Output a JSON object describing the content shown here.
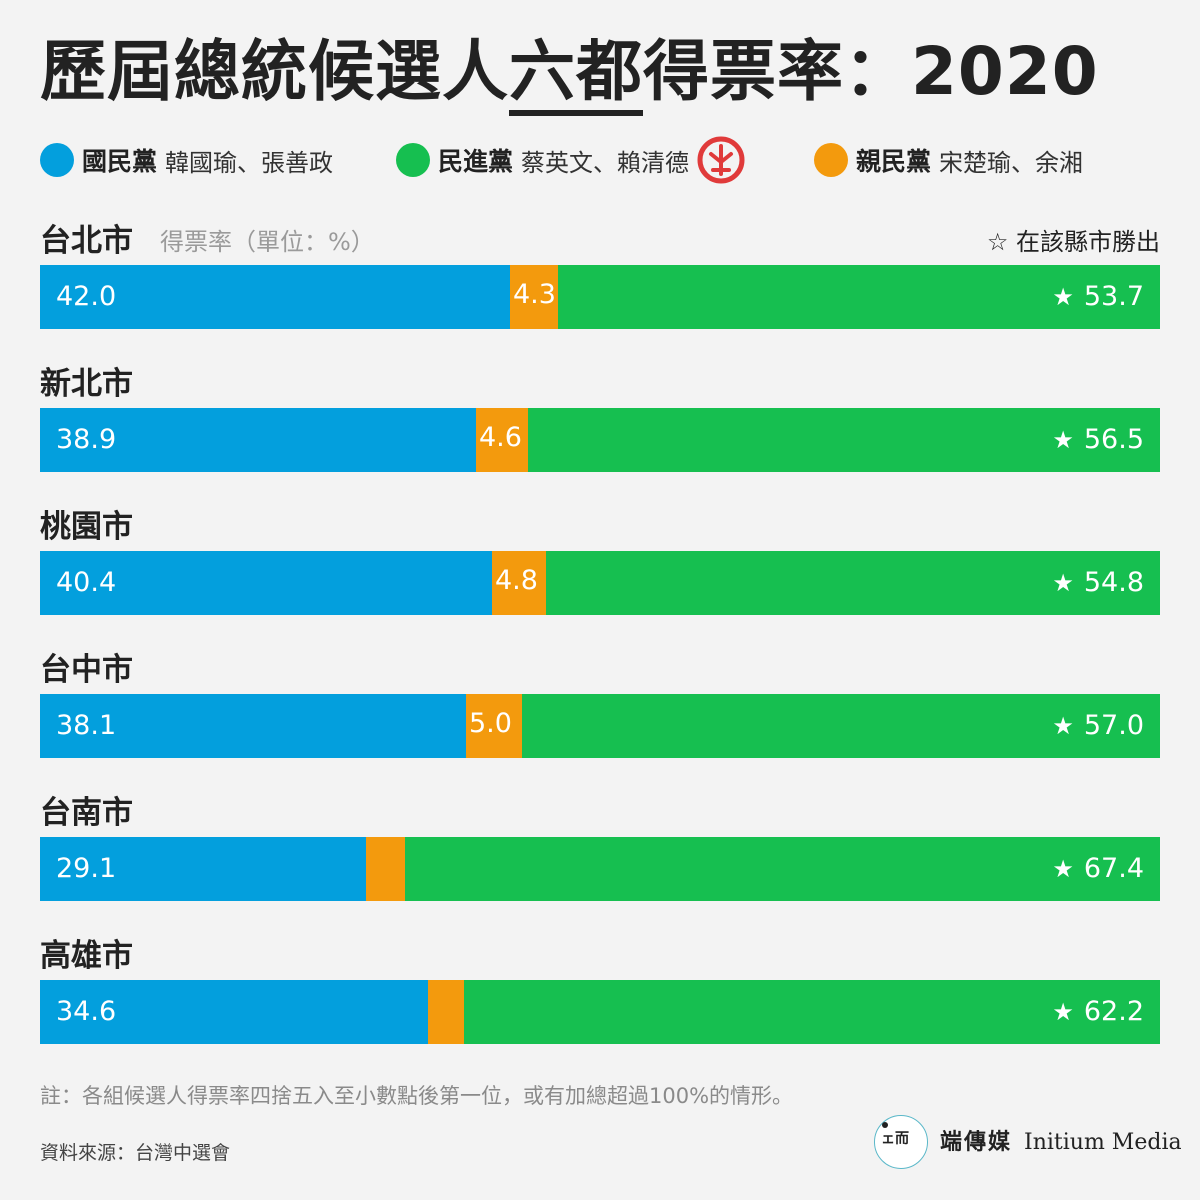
{
  "title": {
    "prefix": "歷屆總統候選人",
    "highlight": "六都",
    "suffix": "得票率：2020"
  },
  "legend": [
    {
      "party": "國民黨",
      "candidates": "韓國瑜、張善政",
      "color": "#039fdd"
    },
    {
      "party": "民進黨",
      "candidates": "蔡英文、賴清德",
      "color": "#16bf50",
      "icon": "vote-stamp-icon"
    },
    {
      "party": "親民黨",
      "candidates": "宋楚瑜、余湘",
      "color": "#f39a0d"
    }
  ],
  "sub_label": "得票率（單位：%）",
  "star_note": "☆ 在該縣市勝出",
  "chart_data": {
    "type": "bar",
    "stacked": true,
    "orientation": "horizontal",
    "categories": [
      "台北市",
      "新北市",
      "桃園市",
      "台中市",
      "台南市",
      "高雄市"
    ],
    "series": [
      {
        "name": "國民黨",
        "color": "#039fdd",
        "values": [
          42.0,
          38.9,
          40.4,
          38.1,
          29.1,
          34.6
        ],
        "labels": [
          "42.0",
          "38.9",
          "40.4",
          "38.1",
          "29.1",
          "34.6"
        ]
      },
      {
        "name": "親民黨",
        "color": "#f39a0d",
        "values": [
          4.3,
          4.6,
          4.8,
          5.0,
          3.5,
          3.2
        ],
        "labels": [
          "4.3",
          "4.6",
          "4.8",
          "5.0",
          "",
          ""
        ]
      },
      {
        "name": "民進黨",
        "color": "#16bf50",
        "values": [
          53.7,
          56.5,
          54.8,
          57.0,
          67.4,
          62.2
        ],
        "labels": [
          "53.7",
          "56.5",
          "54.8",
          "57.0",
          "67.4",
          "62.2"
        ]
      }
    ],
    "winner_marker": "★",
    "xlim": [
      0,
      100
    ]
  },
  "note": "註：各組候選人得票率四捨五入至小數點後第一位，或有加總超過100%的情形。",
  "source": "資料來源：台灣中選會",
  "brand": {
    "chinese": "端傳媒",
    "english": "Initium Media",
    "logo_glyph": "ェ而"
  }
}
